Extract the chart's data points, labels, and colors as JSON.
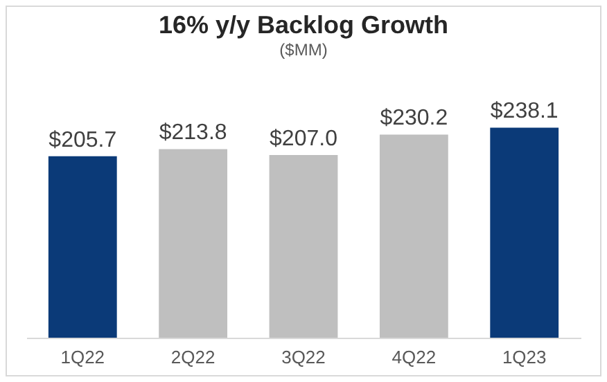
{
  "chart_data": {
    "type": "bar",
    "title": "16% y/y Backlog Growth",
    "subtitle": "($MM)",
    "categories": [
      "1Q22",
      "2Q22",
      "3Q22",
      "4Q22",
      "1Q23"
    ],
    "values": [
      205.7,
      213.8,
      207.0,
      230.2,
      238.1
    ],
    "colors": [
      "#0b3a78",
      "#bfbfbf",
      "#bfbfbf",
      "#bfbfbf",
      "#0b3a78"
    ],
    "value_labels": [
      "$205.7",
      "$213.8",
      "$207.0",
      "$230.2",
      "$238.1"
    ]
  }
}
